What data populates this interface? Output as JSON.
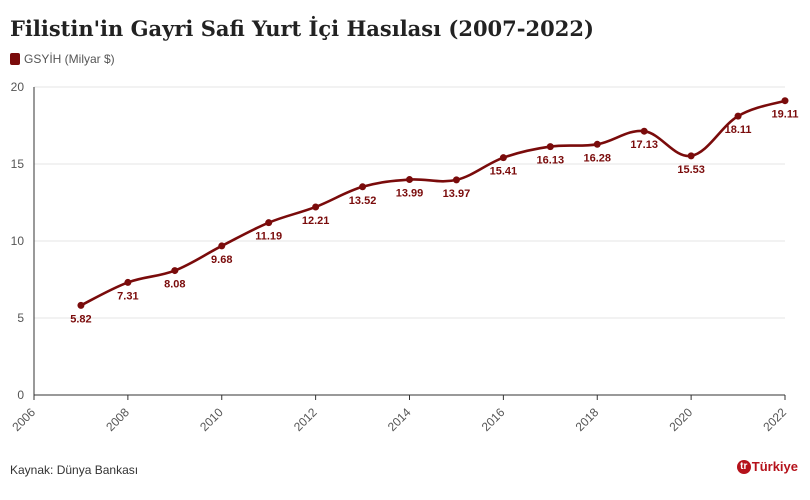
{
  "title": "Filistin'in Gayri Safi Yurt İçi Hasılası (2007-2022)",
  "legend": {
    "label": "GSYİH (Milyar $)",
    "color": "#7a0b0b"
  },
  "source": "Kaynak: Dünya Bankası",
  "brand": {
    "mark": "tr",
    "text": "Türkiye"
  },
  "chart_data": {
    "type": "line",
    "x": [
      2007,
      2008,
      2009,
      2010,
      2011,
      2012,
      2013,
      2014,
      2015,
      2016,
      2017,
      2018,
      2019,
      2020,
      2021,
      2022
    ],
    "series": [
      {
        "name": "GSYİH (Milyar $)",
        "values": [
          5.82,
          7.31,
          8.08,
          9.68,
          11.19,
          12.21,
          13.52,
          13.99,
          13.97,
          15.41,
          16.13,
          16.28,
          17.13,
          15.53,
          18.11,
          19.11
        ]
      }
    ],
    "data_labels": [
      "5.82",
      "7.31",
      "8.08",
      "9.68",
      "11.19",
      "12.21",
      "13.52",
      "13.99",
      "13.97",
      "15.41",
      "16.13",
      "16.28",
      "17.13",
      "15.53",
      "18.11",
      "19.11"
    ],
    "xlim": [
      2006,
      2022
    ],
    "ylim": [
      0,
      20
    ],
    "x_ticks": [
      "2006",
      "2008",
      "2010",
      "2012",
      "2014",
      "2016",
      "2018",
      "2020",
      "2022"
    ],
    "y_ticks": [
      "0",
      "5",
      "10",
      "15",
      "20"
    ],
    "grid": true,
    "color": "#7a0b0b"
  }
}
